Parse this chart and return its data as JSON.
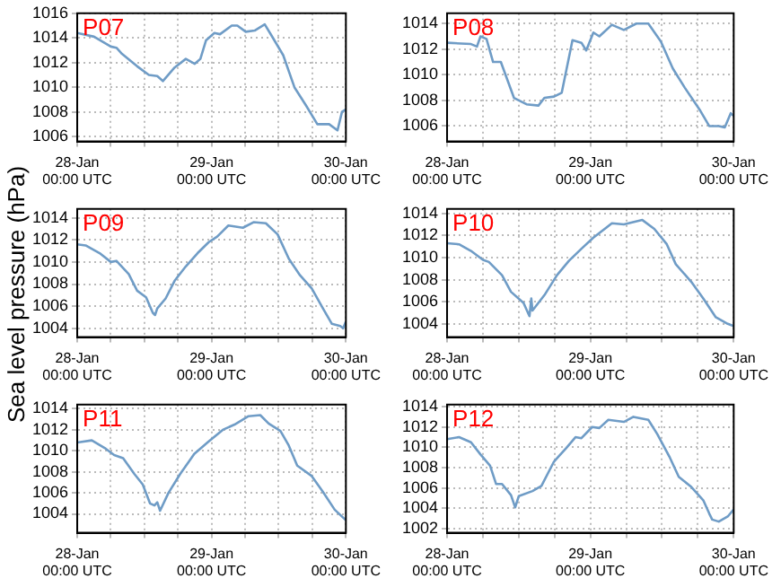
{
  "chart_data": [
    {
      "type": "line",
      "title": "P07",
      "x": [
        "--01-28T00:00",
        "--01-28T03:00",
        "--01-28T06:00",
        "--01-28T07:00",
        "--01-28T08:00",
        "--01-28T10:42",
        "--01-28T12:48",
        "--01-28T14:18",
        "--01-28T15:18",
        "--01-28T17:24",
        "--01-28T19:24",
        "--01-28T21:00",
        "--01-28T22:00",
        "--01-28T23:00",
        "--01-29T00:30",
        "--01-29T01:30",
        "--01-29T03:36",
        "--01-29T04:36",
        "--01-29T06:06",
        "--01-29T07:42",
        "--01-29T09:30",
        "--01-29T10:42",
        "--01-29T12:48",
        "--01-29T14:48",
        "--01-29T16:54",
        "--01-29T18:54",
        "--01-29T21:00",
        "--01-29T22:30",
        "--01-29T23:18",
        "--01-30T00:00"
      ],
      "series": [
        {
          "color": "#6f9cc6",
          "values": [
            1014.4,
            1014.1,
            1013.3,
            1013.2,
            1012.7,
            1011.7,
            1011.0,
            1010.9,
            1010.5,
            1011.6,
            1012.3,
            1011.9,
            1012.3,
            1013.8,
            1014.4,
            1014.3,
            1015.0,
            1015.0,
            1014.5,
            1014.6,
            1015.1,
            1014.2,
            1012.6,
            1010.0,
            1008.5,
            1007.0,
            1007.0,
            1006.5,
            1008.0,
            1008.2
          ]
        }
      ],
      "xlim": [
        "--01-28T00:00",
        "--01-30T00:00"
      ],
      "xticks": [
        {
          "value": "--01-28T00:00",
          "label": "28-Jan 00:00 UTC"
        },
        {
          "value": "--01-28T06:00",
          "label": null
        },
        {
          "value": "--01-28T12:00",
          "label": null
        },
        {
          "value": "--01-28T18:00",
          "label": null
        },
        {
          "value": "--01-29T00:00",
          "label": "29-Jan 00:00 UTC"
        },
        {
          "value": "--01-29T06:00",
          "label": null
        },
        {
          "value": "--01-29T12:00",
          "label": null
        },
        {
          "value": "--01-29T18:00",
          "label": null
        },
        {
          "value": "--01-30T00:00",
          "label": "30-Jan 00:00 UTC"
        }
      ],
      "ylim": [
        1005.6,
        1016
      ],
      "yticks": [
        1006,
        1008,
        1010,
        1012,
        1014,
        1016
      ],
      "grid": true
    },
    {
      "type": "line",
      "title": "P08",
      "x": [
        "--01-28T00:00",
        "--01-28T04:00",
        "--01-28T05:00",
        "--01-28T05:36",
        "--01-28T06:36",
        "--01-28T07:42",
        "--01-28T09:00",
        "--01-28T11:12",
        "--01-28T13:18",
        "--01-28T15:18",
        "--01-28T16:18",
        "--01-28T17:54",
        "--01-28T19:12",
        "--01-28T21:00",
        "--01-28T22:30",
        "--01-28T23:18",
        "--01-29T00:30",
        "--01-29T01:30",
        "--01-29T03:36",
        "--01-29T05:36",
        "--01-29T07:42",
        "--01-29T09:42",
        "--01-29T11:48",
        "--01-29T13:48",
        "--01-29T15:48",
        "--01-29T18:24",
        "--01-29T19:54",
        "--01-29T21:30",
        "--01-29T22:30",
        "--01-29T23:30",
        "--01-30T00:00"
      ],
      "series": [
        {
          "color": "#6f9cc6",
          "values": [
            1012.5,
            1012.4,
            1012.2,
            1013.0,
            1012.8,
            1011.0,
            1011.0,
            1008.2,
            1007.7,
            1007.6,
            1008.2,
            1008.3,
            1008.6,
            1012.7,
            1012.5,
            1011.9,
            1013.3,
            1013.0,
            1013.9,
            1013.5,
            1014.0,
            1014.0,
            1012.6,
            1010.5,
            1009.0,
            1007.2,
            1006.0,
            1006.0,
            1005.9,
            1007.0,
            1006.8
          ]
        }
      ],
      "xlim": [
        "--01-28T00:00",
        "--01-30T00:00"
      ],
      "xticks": [
        {
          "value": "--01-28T00:00",
          "label": "28-Jan 00:00 UTC"
        },
        {
          "value": "--01-28T06:00",
          "label": null
        },
        {
          "value": "--01-28T12:00",
          "label": null
        },
        {
          "value": "--01-28T18:00",
          "label": null
        },
        {
          "value": "--01-29T00:00",
          "label": "29-Jan 00:00 UTC"
        },
        {
          "value": "--01-29T06:00",
          "label": null
        },
        {
          "value": "--01-29T12:00",
          "label": null
        },
        {
          "value": "--01-29T18:00",
          "label": null
        },
        {
          "value": "--01-30T00:00",
          "label": "30-Jan 00:00 UTC"
        }
      ],
      "ylim": [
        1004.8,
        1014.8
      ],
      "yticks": [
        1006,
        1008,
        1010,
        1012,
        1014
      ],
      "grid": true
    },
    {
      "type": "line",
      "title": "P09",
      "ylabel": "Sea level pressure (hPa)",
      "x": [
        "--01-28T00:00",
        "--01-28T01:30",
        "--01-28T04:00",
        "--01-28T06:00",
        "--01-28T07:00",
        "--01-28T09:12",
        "--01-28T10:42",
        "--01-28T12:18",
        "--01-28T13:30",
        "--01-28T13:54",
        "--01-28T14:18",
        "--01-28T15:48",
        "--01-28T17:24",
        "--01-28T19:24",
        "--01-28T21:30",
        "--01-28T23:30",
        "--01-29T01:00",
        "--01-29T03:00",
        "--01-29T05:36",
        "--01-29T07:30",
        "--01-29T09:42",
        "--01-29T11:48",
        "--01-29T13:48",
        "--01-29T15:48",
        "--01-29T17:54",
        "--01-29T19:54",
        "--01-29T21:30",
        "--01-29T23:00",
        "--01-29T23:30",
        "--01-30T00:00"
      ],
      "series": [
        {
          "color": "#6f9cc6",
          "values": [
            1011.6,
            1011.5,
            1010.8,
            1010.0,
            1010.1,
            1008.9,
            1007.4,
            1006.8,
            1005.4,
            1005.2,
            1005.8,
            1006.7,
            1008.3,
            1009.6,
            1010.8,
            1011.8,
            1012.3,
            1013.3,
            1013.1,
            1013.6,
            1013.5,
            1012.5,
            1010.3,
            1008.8,
            1007.6,
            1005.8,
            1004.4,
            1004.2,
            1004.0,
            1004.6
          ]
        }
      ],
      "xlim": [
        "--01-28T00:00",
        "--01-30T00:00"
      ],
      "xticks": [
        {
          "value": "--01-28T00:00",
          "label": "28-Jan 00:00 UTC"
        },
        {
          "value": "--01-28T06:00",
          "label": null
        },
        {
          "value": "--01-28T12:00",
          "label": null
        },
        {
          "value": "--01-28T18:00",
          "label": null
        },
        {
          "value": "--01-29T00:00",
          "label": "29-Jan 00:00 UTC"
        },
        {
          "value": "--01-29T06:00",
          "label": null
        },
        {
          "value": "--01-29T12:00",
          "label": null
        },
        {
          "value": "--01-29T18:00",
          "label": null
        },
        {
          "value": "--01-30T00:00",
          "label": "30-Jan 00:00 UTC"
        }
      ],
      "ylim": [
        1003.2,
        1014.8
      ],
      "yticks": [
        1004,
        1006,
        1008,
        1010,
        1012,
        1014
      ],
      "grid": true
    },
    {
      "type": "line",
      "title": "P10",
      "x": [
        "--01-28T00:00",
        "--01-28T02:00",
        "--01-28T04:00",
        "--01-28T06:00",
        "--01-28T07:00",
        "--01-28T09:12",
        "--01-28T10:42",
        "--01-28T12:48",
        "--01-28T13:48",
        "--01-28T14:06",
        "--01-28T14:18",
        "--01-28T16:18",
        "--01-28T18:24",
        "--01-28T20:24",
        "--01-28T22:30",
        "--01-29T00:30",
        "--01-29T03:36",
        "--01-29T05:36",
        "--01-29T08:42",
        "--01-29T10:42",
        "--01-29T12:48",
        "--01-29T14:18",
        "--01-29T16:54",
        "--01-29T18:54",
        "--01-29T21:00",
        "--01-29T23:00",
        "--01-30T00:00"
      ],
      "series": [
        {
          "color": "#6f9cc6",
          "values": [
            1011.3,
            1011.2,
            1010.6,
            1009.8,
            1009.6,
            1008.4,
            1006.9,
            1005.9,
            1004.7,
            1006.3,
            1005.2,
            1006.6,
            1008.4,
            1009.7,
            1010.8,
            1011.8,
            1013.1,
            1013.0,
            1013.4,
            1012.6,
            1011.2,
            1009.4,
            1007.8,
            1006.3,
            1004.6,
            1004.0,
            1003.8
          ]
        }
      ],
      "xlim": [
        "--01-28T00:00",
        "--01-30T00:00"
      ],
      "xticks": [
        {
          "value": "--01-28T00:00",
          "label": "28-Jan 00:00 UTC"
        },
        {
          "value": "--01-28T06:00",
          "label": null
        },
        {
          "value": "--01-28T12:00",
          "label": null
        },
        {
          "value": "--01-28T18:00",
          "label": null
        },
        {
          "value": "--01-29T00:00",
          "label": "29-Jan 00:00 UTC"
        },
        {
          "value": "--01-29T06:00",
          "label": null
        },
        {
          "value": "--01-29T12:00",
          "label": null
        },
        {
          "value": "--01-29T18:00",
          "label": null
        },
        {
          "value": "--01-30T00:00",
          "label": "30-Jan 00:00 UTC"
        }
      ],
      "ylim": [
        1002.8,
        1014.4
      ],
      "yticks": [
        1004,
        1006,
        1008,
        1010,
        1012,
        1014
      ],
      "grid": true
    },
    {
      "type": "line",
      "title": "P11",
      "x": [
        "--01-28T00:00",
        "--01-28T02:36",
        "--01-28T05:06",
        "--01-28T06:36",
        "--01-28T08:12",
        "--01-28T10:12",
        "--01-28T11:42",
        "--01-28T13:00",
        "--01-28T13:48",
        "--01-28T14:18",
        "--01-28T14:48",
        "--01-28T16:18",
        "--01-28T18:24",
        "--01-28T20:54",
        "--01-28T23:30",
        "--01-29T02:00",
        "--01-29T04:06",
        "--01-29T06:36",
        "--01-29T08:42",
        "--01-29T10:12",
        "--01-29T12:18",
        "--01-29T13:48",
        "--01-29T15:18",
        "--01-29T17:54",
        "--01-29T19:54",
        "--01-29T22:00",
        "--01-30T00:00"
      ],
      "series": [
        {
          "color": "#6f9cc6",
          "values": [
            1010.8,
            1011.0,
            1010.2,
            1009.6,
            1009.3,
            1007.8,
            1006.8,
            1005.0,
            1004.8,
            1005.1,
            1004.3,
            1006.0,
            1007.8,
            1009.7,
            1010.9,
            1012.0,
            1012.5,
            1013.3,
            1013.4,
            1012.6,
            1011.9,
            1010.5,
            1008.6,
            1007.6,
            1006.1,
            1004.4,
            1003.4
          ]
        }
      ],
      "xlim": [
        "--01-28T00:00",
        "--01-30T00:00"
      ],
      "xticks": [
        {
          "value": "--01-28T00:00",
          "label": "28-Jan 00:00 UTC"
        },
        {
          "value": "--01-28T06:00",
          "label": null
        },
        {
          "value": "--01-28T12:00",
          "label": null
        },
        {
          "value": "--01-28T18:00",
          "label": null
        },
        {
          "value": "--01-29T00:00",
          "label": "29-Jan 00:00 UTC"
        },
        {
          "value": "--01-29T06:00",
          "label": null
        },
        {
          "value": "--01-29T12:00",
          "label": null
        },
        {
          "value": "--01-29T18:00",
          "label": null
        },
        {
          "value": "--01-30T00:00",
          "label": "30-Jan 00:00 UTC"
        }
      ],
      "ylim": [
        1002.2,
        1014.4
      ],
      "yticks": [
        1004,
        1006,
        1008,
        1010,
        1012,
        1014
      ],
      "grid": true
    },
    {
      "type": "line",
      "title": "P12",
      "x": [
        "--01-28T00:00",
        "--01-28T02:00",
        "--01-28T04:00",
        "--01-28T05:36",
        "--01-28T07:12",
        "--01-28T08:12",
        "--01-28T09:12",
        "--01-28T10:42",
        "--01-28T11:24",
        "--01-28T12:00",
        "--01-28T14:18",
        "--01-28T15:48",
        "--01-28T17:54",
        "--01-28T19:54",
        "--01-28T21:30",
        "--01-28T22:30",
        "--01-29T00:18",
        "--01-29T01:30",
        "--01-29T03:00",
        "--01-29T05:36",
        "--01-29T07:12",
        "--01-29T09:42",
        "--01-29T11:12",
        "--01-29T13:18",
        "--01-29T14:48",
        "--01-29T16:54",
        "--01-29T18:54",
        "--01-29T19:54",
        "--01-29T20:24",
        "--01-29T21:30",
        "--01-29T23:00",
        "--01-30T00:00"
      ],
      "series": [
        {
          "color": "#6f9cc6",
          "values": [
            1010.8,
            1011.0,
            1010.5,
            1009.3,
            1008.2,
            1006.4,
            1006.4,
            1005.3,
            1004.1,
            1005.2,
            1005.7,
            1006.2,
            1008.6,
            1009.9,
            1011.0,
            1010.9,
            1012.0,
            1011.9,
            1012.7,
            1012.5,
            1013.0,
            1012.7,
            1011.3,
            1009.0,
            1007.1,
            1006.1,
            1004.8,
            1003.5,
            1002.9,
            1002.7,
            1003.2,
            1003.9
          ]
        }
      ],
      "xlim": [
        "--01-28T00:00",
        "--01-30T00:00"
      ],
      "xticks": [
        {
          "value": "--01-28T00:00",
          "label": "28-Jan 00:00 UTC"
        },
        {
          "value": "--01-28T06:00",
          "label": null
        },
        {
          "value": "--01-28T12:00",
          "label": null
        },
        {
          "value": "--01-28T18:00",
          "label": null
        },
        {
          "value": "--01-29T00:00",
          "label": "29-Jan 00:00 UTC"
        },
        {
          "value": "--01-29T06:00",
          "label": null
        },
        {
          "value": "--01-29T12:00",
          "label": null
        },
        {
          "value": "--01-29T18:00",
          "label": null
        },
        {
          "value": "--01-30T00:00",
          "label": "30-Jan 00:00 UTC"
        }
      ],
      "ylim": [
        1001.6,
        1014.2
      ],
      "yticks": [
        1002,
        1004,
        1006,
        1008,
        1010,
        1012,
        1014
      ],
      "grid": true
    }
  ]
}
